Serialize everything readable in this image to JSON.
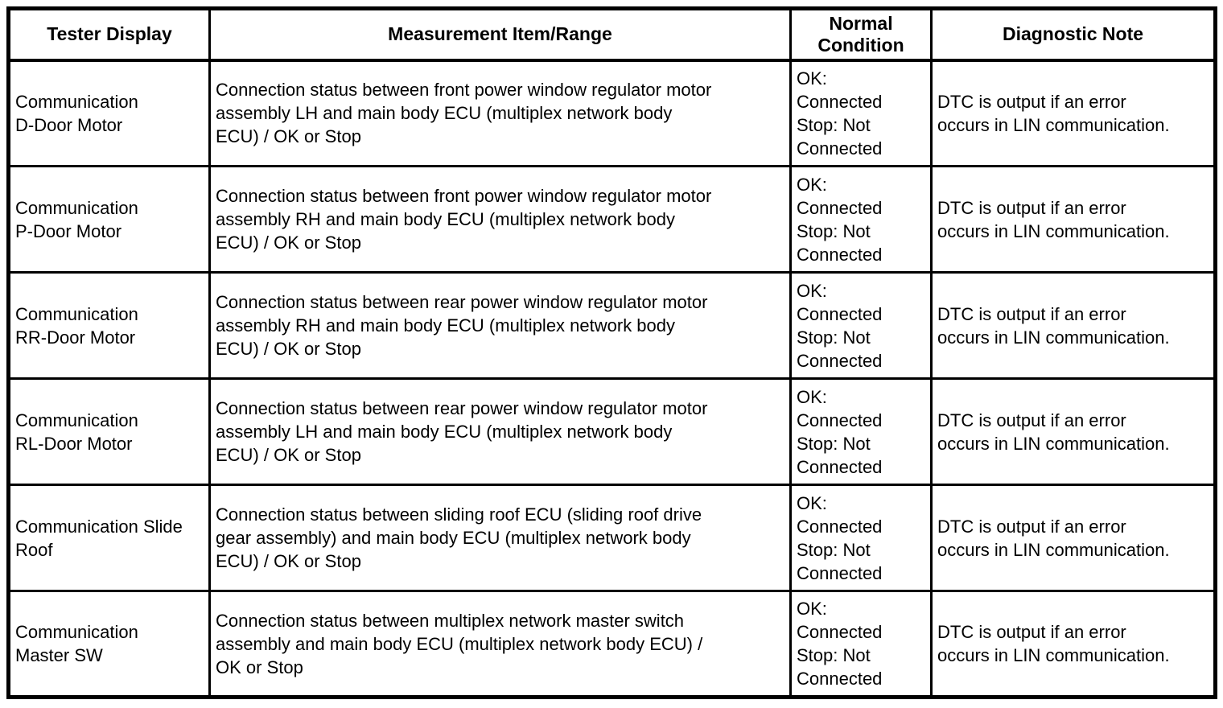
{
  "page": {
    "background_color": "#ffffff",
    "text_color": "#000000",
    "border_color": "#000000"
  },
  "table": {
    "headers": [
      "Tester Display",
      "Measurement Item/Range",
      "Normal\nCondition",
      "Diagnostic Note"
    ],
    "rows": [
      {
        "tester_display": "Communication\nD-Door Motor",
        "measurement_item_range": "Connection status between front power window regulator motor\nassembly LH and main body ECU (multiplex network body\nECU) / OK or Stop",
        "normal_condition": "OK:\nConnected\nStop: Not\nConnected",
        "diagnostic_note": "DTC is output if an error\noccurs in LIN communication."
      },
      {
        "tester_display": "Communication\nP-Door Motor",
        "measurement_item_range": "Connection status between front power window regulator motor\nassembly RH and main body ECU (multiplex network body\nECU) / OK or Stop",
        "normal_condition": "OK:\nConnected\nStop: Not\nConnected",
        "diagnostic_note": "DTC is output if an error\noccurs in LIN communication."
      },
      {
        "tester_display": "Communication\nRR-Door Motor",
        "measurement_item_range": "Connection status between rear power window regulator motor\nassembly RH and main body ECU (multiplex network body\nECU) / OK or Stop",
        "normal_condition": "OK:\nConnected\nStop: Not\nConnected",
        "diagnostic_note": "DTC is output if an error\noccurs in LIN communication."
      },
      {
        "tester_display": "Communication\nRL-Door Motor",
        "measurement_item_range": "Connection status between rear power window regulator motor\nassembly LH and main body ECU (multiplex network body\nECU) / OK or Stop",
        "normal_condition": "OK:\nConnected\nStop: Not\nConnected",
        "diagnostic_note": "DTC is output if an error\noccurs in LIN communication."
      },
      {
        "tester_display": "Communication Slide\nRoof",
        "measurement_item_range": "Connection status between sliding roof ECU (sliding roof drive\ngear assembly) and main body ECU (multiplex network body\nECU) / OK or Stop",
        "normal_condition": "OK:\nConnected\nStop: Not\nConnected",
        "diagnostic_note": "DTC is output if an error\noccurs in LIN communication."
      },
      {
        "tester_display": "Communication\nMaster SW",
        "measurement_item_range": "Connection status between multiplex network master switch\nassembly and main body ECU (multiplex network body ECU) /\nOK or Stop",
        "normal_condition": "OK:\nConnected\nStop: Not\nConnected",
        "diagnostic_note": "DTC is output if an error\noccurs in LIN communication."
      }
    ]
  }
}
